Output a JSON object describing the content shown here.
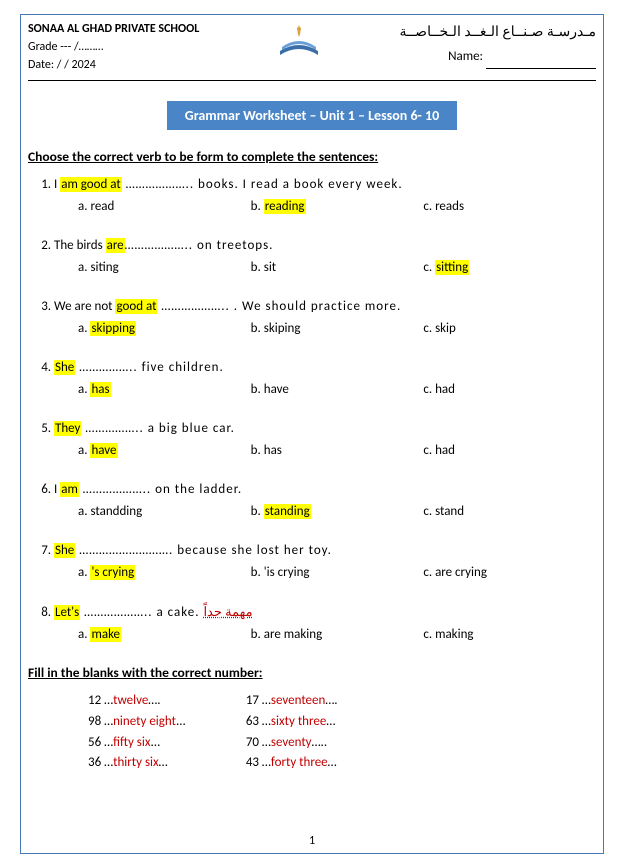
{
  "header": {
    "school_en": "SONAA AL GHAD PRIVATE SCHOOL",
    "grade_label": "Grade --- /………",
    "date_label": "Date:   /   / 2024",
    "school_ar": "مـدرسـة صـنــاع  الـغــد  الـخــاصــة",
    "name_label": "Name:"
  },
  "title": "Grammar Worksheet – Unit 1 – Lesson 6- 10",
  "section1_head": "Choose the correct verb to be form to complete the sentences:",
  "questions": [
    {
      "pre": "I ",
      "hl1": "am good at",
      "mid": " ……………….. books. I read a book every week.",
      "extra": "",
      "opts": [
        {
          "l": "a.",
          "t": "read",
          "hl": false
        },
        {
          "l": "b.",
          "t": "reading",
          "hl": true
        },
        {
          "l": "c.",
          "t": "reads",
          "hl": false
        }
      ]
    },
    {
      "pre": "The birds ",
      "hl1": "are",
      "mid": "……………….. on treetops.",
      "extra": "",
      "opts": [
        {
          "l": "a.",
          "t": "siting",
          "hl": false
        },
        {
          "l": "b.",
          "t": "sit",
          "hl": false
        },
        {
          "l": "c.",
          "t": "sitting",
          "hl": true
        }
      ]
    },
    {
      "pre": "We are not ",
      "hl1": "good at",
      "mid": " ……………….. . We should practice more.",
      "extra": "",
      "opts": [
        {
          "l": "a.",
          "t": "skipping",
          "hl": true
        },
        {
          "l": "b.",
          "t": "skiping",
          "hl": false
        },
        {
          "l": "c.",
          "t": "skip",
          "hl": false
        }
      ]
    },
    {
      "pre": "",
      "hl1": "She",
      "mid": " …………….. five children.",
      "extra": "",
      "opts": [
        {
          "l": "a.",
          "t": "has",
          "hl": true
        },
        {
          "l": "b.",
          "t": "have",
          "hl": false
        },
        {
          "l": "c.",
          "t": "had",
          "hl": false
        }
      ]
    },
    {
      "pre": "",
      "hl1": "They",
      "mid": " …………….. a big blue car.",
      "extra": "",
      "opts": [
        {
          "l": "a.",
          "t": "have",
          "hl": true
        },
        {
          "l": "b.",
          "t": "has",
          "hl": false
        },
        {
          "l": "c.",
          "t": "had",
          "hl": false
        }
      ]
    },
    {
      "pre": "I ",
      "hl1": "am",
      "mid": " ……………….. on the ladder.",
      "extra": "",
      "opts": [
        {
          "l": "a.",
          "t": "standding",
          "hl": false
        },
        {
          "l": "b.",
          "t": "standing",
          "hl": true
        },
        {
          "l": "c.",
          "t": "stand",
          "hl": false
        }
      ]
    },
    {
      "pre": "",
      "hl1": "She",
      "mid": " ………………………. because she lost her toy.",
      "extra": "",
      "opts": [
        {
          "l": "a.",
          "t": "'s crying",
          "hl": true
        },
        {
          "l": "b.",
          "t": "'is crying",
          "hl": false
        },
        {
          "l": "c.",
          "t": "are crying",
          "hl": false
        }
      ]
    },
    {
      "pre": "",
      "hl1": "Let's",
      "mid": " ……………….. a cake. ",
      "extra": "مهمة جداً",
      "opts": [
        {
          "l": "a.",
          "t": "make",
          "hl": true
        },
        {
          "l": "b.",
          "t": "are making",
          "hl": false
        },
        {
          "l": "c.",
          "t": "making",
          "hl": false
        }
      ]
    }
  ],
  "section2_head": "Fill in the blanks with the correct number:",
  "fill_left": [
    {
      "n": "12",
      "w": "twelve",
      "suf": "…."
    },
    {
      "n": "98",
      "w": "ninety eight",
      "suf": "..."
    },
    {
      "n": "56",
      "w": "fifty six",
      "suf": "..."
    },
    {
      "n": "36",
      "w": "thirty six",
      "suf": "…"
    }
  ],
  "fill_right": [
    {
      "n": "17",
      "w": "seventeen",
      "suf": "…."
    },
    {
      "n": "63",
      "w": "sixty three",
      "suf": "…"
    },
    {
      "n": "70",
      "w": "seventy",
      "suf": "….."
    },
    {
      "n": "43",
      "w": "forty three",
      "suf": "…"
    }
  ],
  "page_number": "1"
}
